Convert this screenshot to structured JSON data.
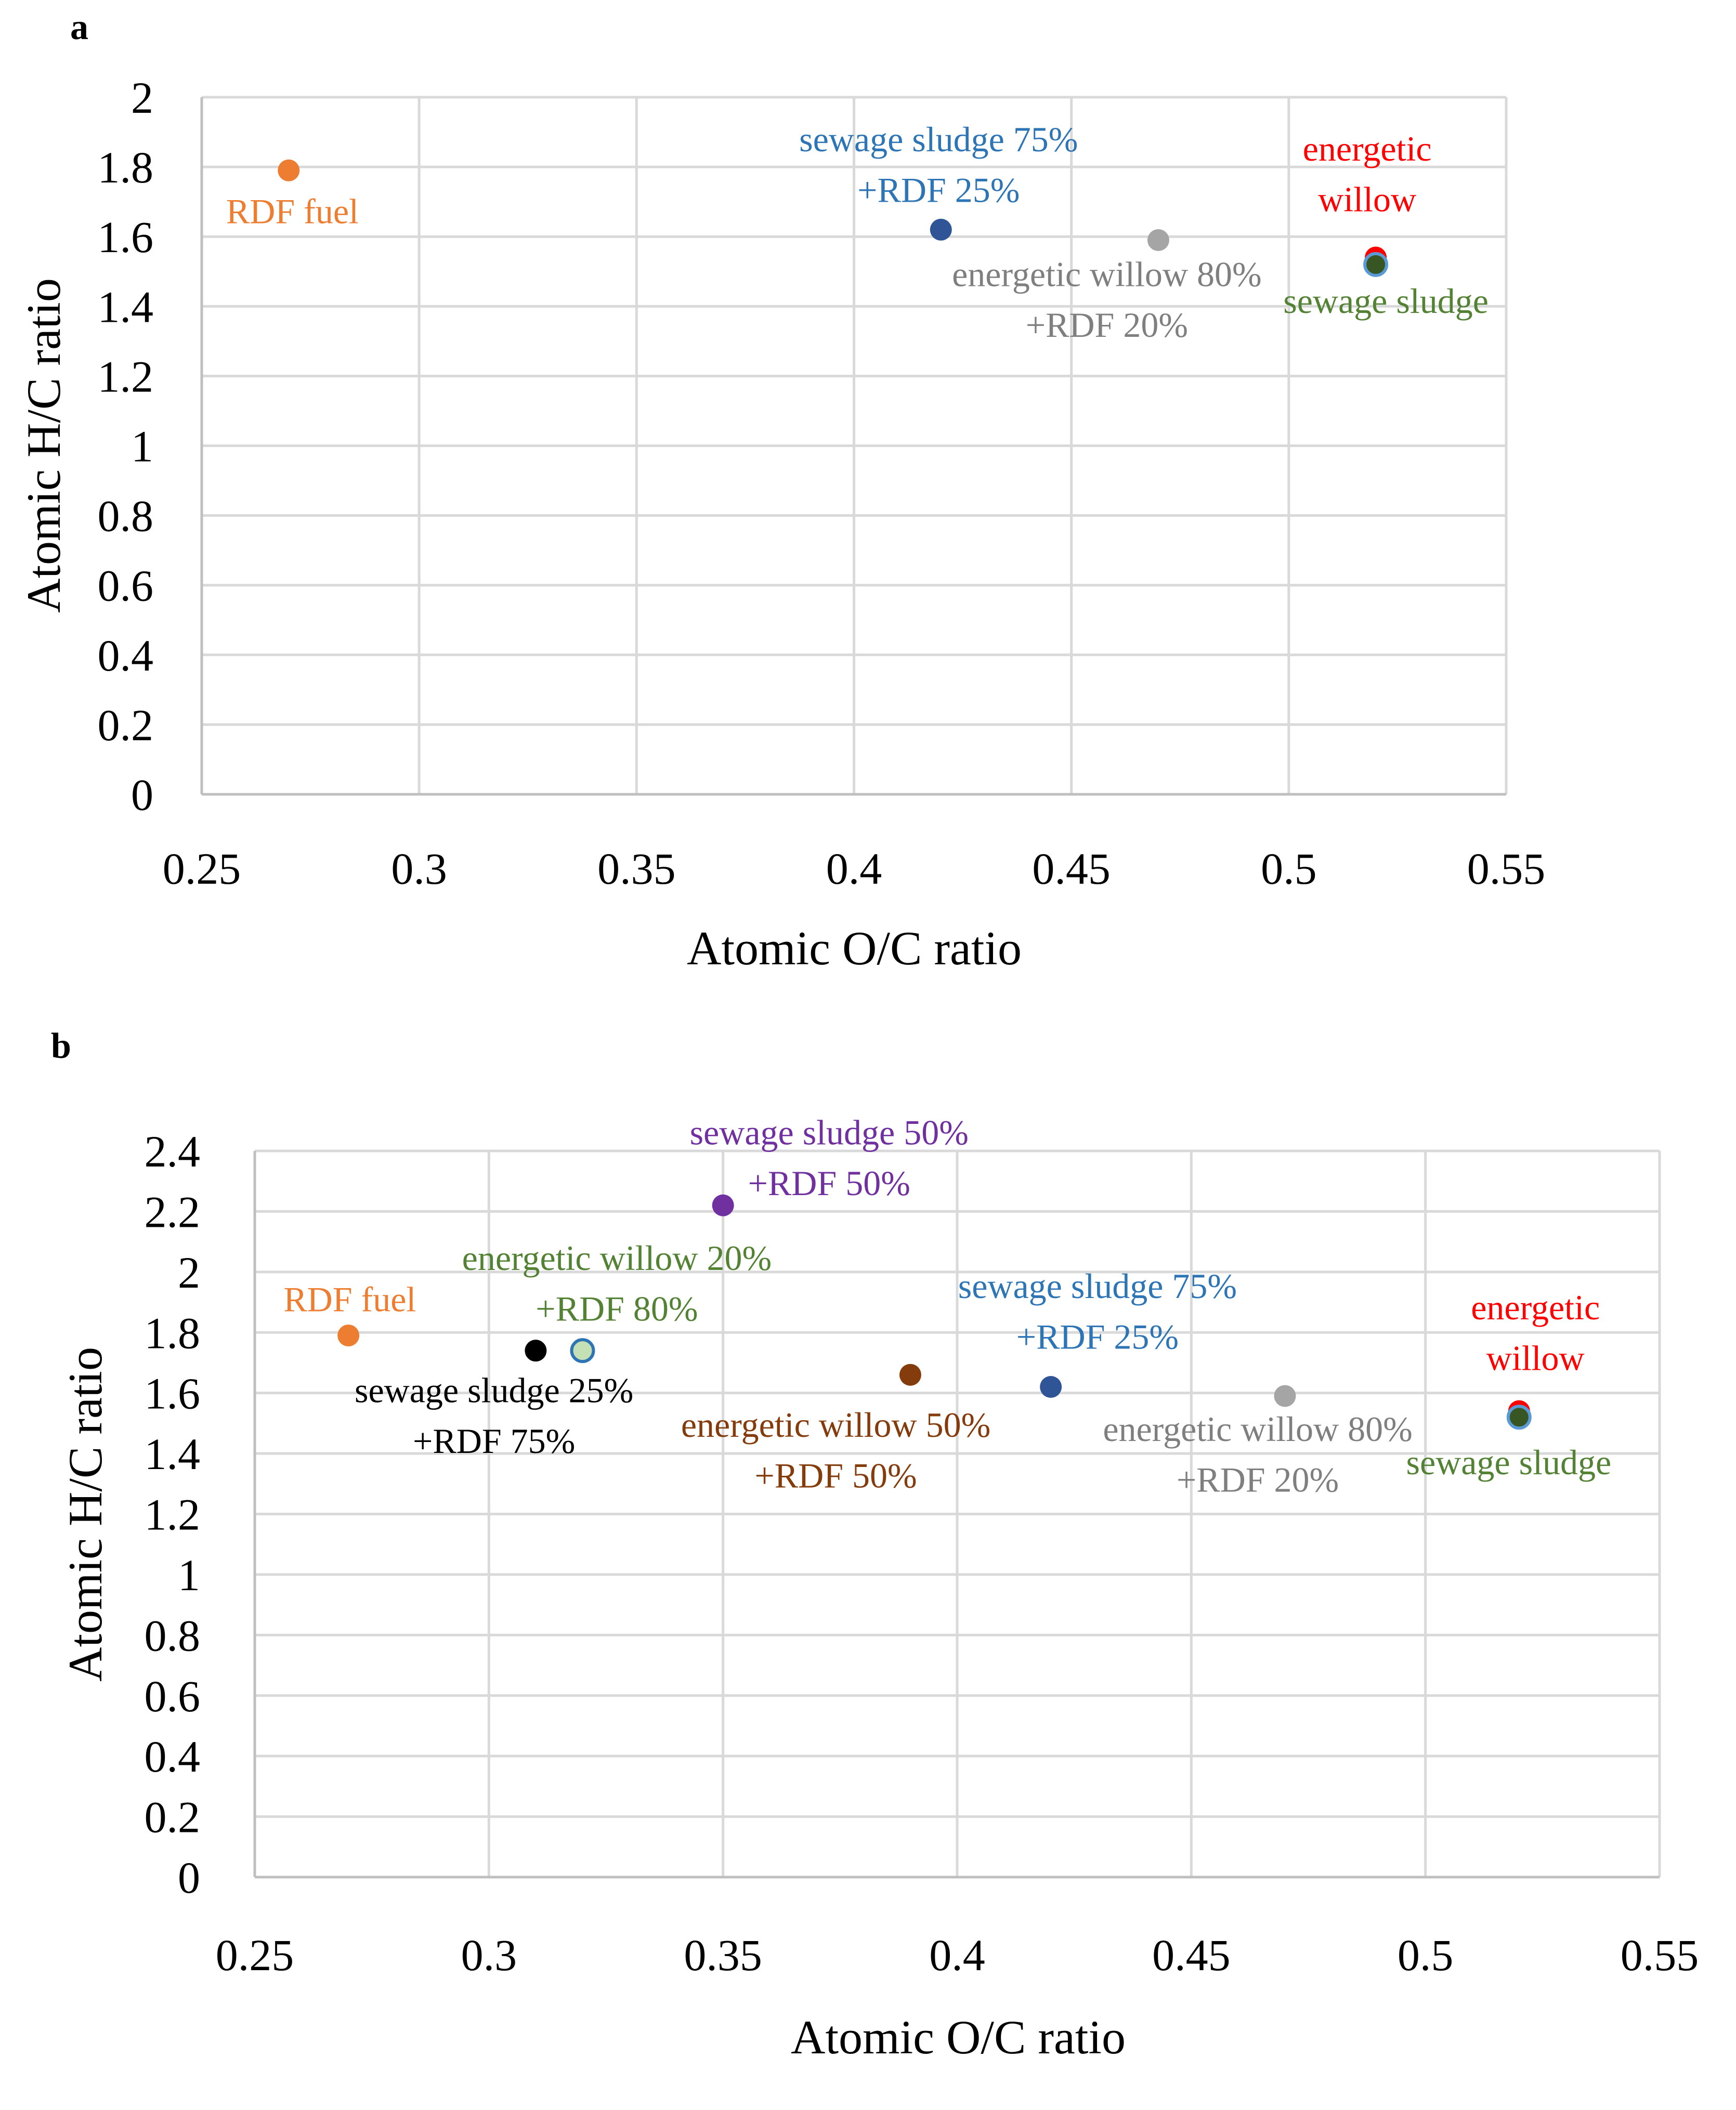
{
  "chart_data": [
    {
      "panel": "a",
      "type": "scatter",
      "xlabel": "Atomic O/C ratio",
      "ylabel": "Atomic H/C ratio",
      "xlim": [
        0.25,
        0.55
      ],
      "ylim": [
        0,
        2
      ],
      "xticks": [
        "0.25",
        "0.3",
        "0.35",
        "0.4",
        "0.45",
        "0.5",
        "0.55"
      ],
      "yticks": [
        "0",
        "0.2",
        "0.4",
        "0.6",
        "0.8",
        "1",
        "1.2",
        "1.4",
        "1.6",
        "1.8",
        "2"
      ],
      "grid": true,
      "points": [
        {
          "label": [
            "RDF fuel"
          ],
          "x": 0.27,
          "y": 1.79,
          "color": "#ED7D31",
          "label_color": "#ED7D31"
        },
        {
          "label": [
            "sewage sludge 75%",
            "+RDF 25%"
          ],
          "x": 0.42,
          "y": 1.62,
          "color": "#2F5597",
          "label_color": "#2E75B6"
        },
        {
          "label": [
            "energetic willow 80%",
            "+RDF 20%"
          ],
          "x": 0.47,
          "y": 1.59,
          "color": "#A5A5A5",
          "label_color": "#7F7F7F"
        },
        {
          "label": [
            "energetic",
            "willow"
          ],
          "x": 0.52,
          "y": 1.54,
          "color": "#FF0000",
          "label_color": "#FF0000"
        },
        {
          "label": [
            "sewage sludge"
          ],
          "x": 0.52,
          "y": 1.52,
          "color": "#375623",
          "outline": "#5B9BD5",
          "label_color": "#548235"
        }
      ]
    },
    {
      "panel": "b",
      "type": "scatter",
      "xlabel": "Atomic O/C ratio",
      "ylabel": "Atomic H/C ratio",
      "xlim": [
        0.25,
        0.55
      ],
      "ylim": [
        0,
        2.4
      ],
      "xticks": [
        "0.25",
        "0.3",
        "0.35",
        "0.4",
        "0.45",
        "0.5",
        "0.55"
      ],
      "yticks": [
        "0",
        "0.2",
        "0.4",
        "0.6",
        "0.8",
        "1",
        "1.2",
        "1.4",
        "1.6",
        "1.8",
        "2",
        "2.2",
        "2.4"
      ],
      "grid": true,
      "points": [
        {
          "label": [
            "sewage sludge 50%",
            "+RDF 50%"
          ],
          "x": 0.35,
          "y": 2.22,
          "color": "#7030A0",
          "label_color": "#7030A0"
        },
        {
          "label": [
            "energetic willow 20%",
            "+RDF 80%"
          ],
          "x": 0.32,
          "y": 1.74,
          "color": "#C5E0B4",
          "outline": "#2E75B6",
          "label_color": "#548235"
        },
        {
          "label": [
            "RDF fuel"
          ],
          "x": 0.27,
          "y": 1.79,
          "color": "#ED7D31",
          "label_color": "#ED7D31"
        },
        {
          "label": [
            "sewage sludge 75%",
            "+RDF 25%"
          ],
          "x": 0.42,
          "y": 1.62,
          "color": "#2F5597",
          "label_color": "#2E75B6"
        },
        {
          "label": [
            "energetic",
            "willow"
          ],
          "x": 0.52,
          "y": 1.54,
          "color": "#FF0000",
          "label_color": "#FF0000"
        },
        {
          "label": [
            "sewage sludge 25%",
            "+RDF 75%"
          ],
          "x": 0.31,
          "y": 1.74,
          "color": "#000000",
          "label_color": "#000000"
        },
        {
          "label": [
            "energetic willow 50%",
            "+RDF 50%"
          ],
          "x": 0.39,
          "y": 1.66,
          "color": "#843C0C",
          "label_color": "#843C0C"
        },
        {
          "label": [
            "energetic willow 80%",
            "+RDF 20%"
          ],
          "x": 0.47,
          "y": 1.59,
          "color": "#A5A5A5",
          "label_color": "#7F7F7F"
        },
        {
          "label": [
            "sewage sludge"
          ],
          "x": 0.52,
          "y": 1.52,
          "color": "#375623",
          "outline": "#5B9BD5",
          "label_color": "#548235"
        }
      ]
    }
  ]
}
